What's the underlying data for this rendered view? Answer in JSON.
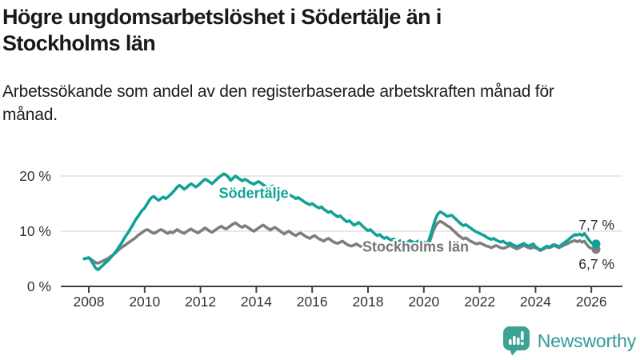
{
  "header": {
    "title": "Högre ungdomsarbetslöshet i Södertälje än i Stockholms län",
    "subtitle": "Arbetssökande som andel av den registerbaserade arbetskraften månad för månad."
  },
  "footer": {
    "brand": "Newsworthy",
    "logo_icon": "bar-chart-speech-bubble-icon",
    "brand_color": "#2F9A94",
    "icon_color": "#3BA294"
  },
  "chart_data": {
    "type": "line",
    "title": "Högre ungdomsarbetslöshet i Södertälje än i Stockholms län",
    "subtitle": "Arbetssökande som andel av den registerbaserade arbetskraften månad för månad.",
    "grid": "horizontal-only",
    "x_axis": {
      "ticks": [
        2008,
        2010,
        2012,
        2014,
        2016,
        2018,
        2020,
        2022,
        2024,
        2026
      ],
      "range": [
        2007.0,
        2027.1
      ]
    },
    "y_axis": {
      "ticks": [
        0,
        10,
        20
      ],
      "tick_labels": [
        "0 %",
        "10 %",
        "20 %"
      ],
      "range": [
        0,
        21.5
      ],
      "unit": "%"
    },
    "axis_color": "#3f3f3f",
    "grid_color": "#dadada",
    "frequency": "monthly",
    "series": [
      {
        "name": "Stockholms län",
        "color": "#7E7E7E",
        "label_color": "#757575",
        "label_at": [
          2017.8,
          6.3
        ],
        "start_year": 2007.8333,
        "end_value": 6.7,
        "end_label": "6,7 %",
        "end_label_dy": 24,
        "values": [
          5.0,
          5.1,
          5.2,
          4.9,
          4.6,
          4.3,
          4.2,
          4.4,
          4.6,
          4.8,
          5.0,
          5.3,
          5.6,
          5.9,
          6.3,
          6.7,
          7.0,
          7.3,
          7.6,
          7.9,
          8.2,
          8.5,
          8.8,
          9.2,
          9.5,
          9.8,
          10.1,
          10.3,
          10.1,
          9.8,
          9.6,
          9.8,
          10.1,
          10.3,
          10.1,
          9.8,
          9.6,
          9.9,
          9.7,
          10.0,
          10.3,
          10.0,
          9.8,
          9.6,
          9.9,
          10.2,
          10.4,
          10.1,
          9.9,
          9.7,
          10.0,
          10.3,
          10.6,
          10.3,
          10.0,
          9.8,
          10.1,
          10.4,
          10.7,
          10.9,
          10.6,
          10.4,
          10.7,
          11.0,
          11.3,
          11.5,
          11.2,
          10.9,
          10.7,
          11.0,
          10.8,
          10.5,
          10.2,
          10.0,
          10.3,
          10.6,
          10.9,
          11.1,
          10.8,
          10.5,
          10.2,
          10.5,
          10.7,
          10.4,
          10.1,
          9.8,
          9.5,
          9.8,
          10.0,
          9.7,
          9.4,
          9.2,
          9.5,
          9.7,
          9.4,
          9.1,
          8.9,
          8.7,
          9.0,
          9.2,
          8.9,
          8.6,
          8.4,
          8.2,
          8.5,
          8.7,
          8.4,
          8.1,
          7.9,
          7.8,
          8.0,
          8.2,
          7.9,
          7.6,
          7.4,
          7.3,
          7.5,
          7.7,
          7.4,
          7.2,
          7.0,
          6.9,
          7.1,
          7.3,
          7.0,
          6.8,
          6.6,
          6.7,
          6.9,
          7.1,
          6.9,
          6.7,
          6.6,
          6.7,
          6.9,
          7.1,
          6.9,
          6.7,
          6.6,
          6.7,
          6.9,
          7.1,
          7.0,
          6.8,
          6.9,
          7.1,
          7.2,
          7.1,
          7.5,
          8.7,
          10.0,
          10.9,
          11.5,
          11.8,
          11.6,
          11.3,
          11.0,
          10.8,
          10.4,
          10.0,
          9.6,
          9.2,
          8.9,
          8.6,
          8.8,
          8.5,
          8.2,
          8.0,
          7.8,
          7.7,
          7.9,
          7.7,
          7.5,
          7.3,
          7.2,
          7.0,
          7.2,
          7.4,
          7.2,
          7.0,
          6.9,
          7.0,
          7.2,
          7.4,
          7.2,
          7.0,
          6.8,
          7.0,
          7.2,
          7.4,
          7.2,
          7.0,
          6.9,
          7.1,
          7.0,
          6.8,
          6.5,
          6.7,
          6.9,
          7.1,
          7.0,
          7.2,
          7.4,
          7.2,
          7.0,
          7.2,
          7.4,
          7.6,
          7.8,
          8.0,
          8.2,
          8.3,
          8.1,
          8.3,
          8.0,
          8.2,
          7.6,
          7.1,
          6.9,
          6.8,
          6.7
        ]
      },
      {
        "name": "Södertälje",
        "color": "#10A395",
        "label_color": "#10A395",
        "label_at": [
          2012.66,
          16.05
        ],
        "start_year": 2007.8333,
        "end_value": 7.7,
        "end_label": "7,7 %",
        "end_label_dy": -18,
        "values": [
          5.0,
          5.1,
          5.2,
          4.7,
          4.0,
          3.3,
          3.0,
          3.4,
          3.8,
          4.2,
          4.6,
          5.0,
          5.5,
          6.0,
          6.5,
          7.2,
          7.8,
          8.5,
          9.2,
          9.8,
          10.5,
          11.2,
          12.0,
          12.6,
          13.2,
          13.8,
          14.2,
          14.9,
          15.6,
          16.1,
          16.3,
          15.9,
          15.6,
          15.9,
          16.2,
          15.9,
          16.2,
          16.6,
          17.0,
          17.5,
          18.0,
          18.3,
          18.0,
          17.6,
          17.9,
          18.3,
          18.6,
          18.3,
          18.0,
          18.3,
          18.7,
          19.1,
          19.4,
          19.2,
          18.9,
          18.6,
          19.0,
          19.4,
          19.8,
          20.1,
          20.4,
          20.2,
          19.8,
          19.2,
          19.6,
          20.0,
          19.7,
          19.4,
          19.1,
          19.4,
          19.2,
          18.9,
          18.7,
          18.5,
          18.8,
          19.0,
          18.7,
          18.4,
          18.1,
          17.8,
          18.0,
          18.2,
          17.9,
          17.6,
          17.3,
          17.1,
          17.3,
          17.0,
          16.7,
          16.4,
          16.2,
          15.9,
          16.1,
          15.8,
          15.5,
          15.2,
          15.0,
          14.8,
          15.0,
          14.7,
          14.4,
          14.2,
          14.4,
          14.0,
          13.7,
          13.4,
          13.6,
          13.2,
          12.9,
          12.6,
          12.8,
          12.4,
          12.0,
          11.7,
          11.9,
          11.5,
          11.1,
          11.3,
          11.6,
          11.2,
          10.8,
          10.4,
          10.1,
          10.3,
          9.9,
          9.5,
          9.2,
          9.4,
          9.0,
          8.7,
          8.9,
          8.6,
          8.4,
          8.6,
          8.3,
          8.1,
          8.3,
          8.0,
          7.8,
          8.0,
          8.3,
          8.1,
          7.9,
          8.1,
          8.3,
          8.2,
          8.0,
          7.8,
          8.2,
          9.4,
          10.9,
          12.2,
          13.1,
          13.5,
          13.3,
          13.0,
          12.7,
          12.8,
          12.9,
          12.5,
          12.1,
          11.7,
          11.3,
          11.0,
          11.2,
          10.9,
          10.6,
          10.3,
          10.0,
          9.8,
          9.6,
          9.4,
          9.2,
          8.9,
          8.7,
          8.5,
          8.7,
          8.4,
          8.2,
          8.0,
          8.2,
          7.9,
          7.7,
          7.9,
          7.6,
          7.4,
          7.2,
          7.4,
          7.6,
          7.8,
          7.5,
          7.3,
          7.5,
          7.7,
          7.2,
          6.9,
          6.6,
          6.8,
          7.1,
          7.3,
          7.1,
          7.4,
          7.6,
          7.4,
          7.2,
          7.5,
          7.8,
          8.1,
          8.4,
          8.8,
          9.1,
          9.4,
          9.3,
          9.5,
          9.2,
          9.6,
          9.0,
          8.4,
          7.9,
          7.7,
          7.7
        ]
      }
    ]
  }
}
